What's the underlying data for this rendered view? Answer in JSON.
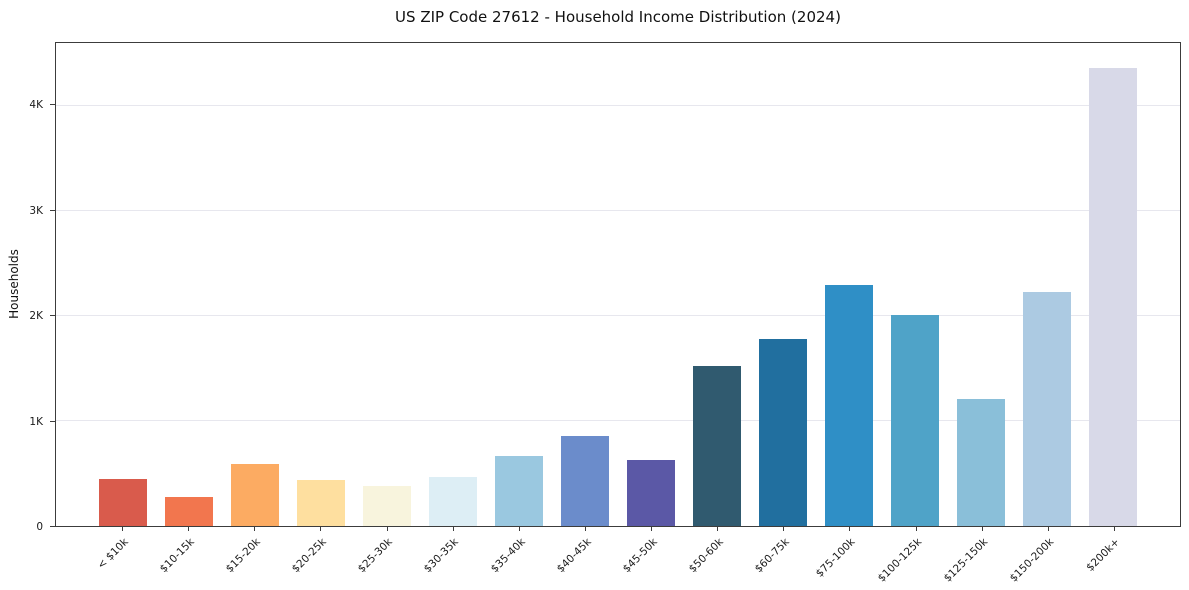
{
  "figure": {
    "title": "US ZIP Code 27612 - Household Income Distribution (2024)",
    "ylabel": "Households"
  },
  "chart_data": {
    "type": "bar",
    "title": "US ZIP Code 27612 - Household Income Distribution (2024)",
    "xlabel": "",
    "ylabel": "Households",
    "categories": [
      "< $10k",
      "$10-15k",
      "$15-20k",
      "$20-25k",
      "$25-30k",
      "$30-35k",
      "$35-40k",
      "$40-45k",
      "$45-50k",
      "$50-60k",
      "$60-75k",
      "$75-100k",
      "$100-125k",
      "$125-150k",
      "$150-200k",
      "$200k+"
    ],
    "values": [
      445,
      275,
      590,
      435,
      380,
      465,
      665,
      860,
      625,
      1520,
      1780,
      2300,
      2010,
      1210,
      2230,
      4360
    ],
    "colors": [
      "#d95b4c",
      "#f2764e",
      "#fcab62",
      "#fedf9f",
      "#f8f4dd",
      "#ddeef5",
      "#9ac8e0",
      "#6b8ccb",
      "#5b58a6",
      "#305a6f",
      "#216f9f",
      "#2f8fc6",
      "#4fa3c8",
      "#8abfd9",
      "#accae2",
      "#d8d9e8"
    ],
    "ylim": [
      0,
      4600
    ],
    "yticks": [
      {
        "value": 0,
        "label": "0"
      },
      {
        "value": 1000,
        "label": "1K"
      },
      {
        "value": 2000,
        "label": "2K"
      },
      {
        "value": 3000,
        "label": "3K"
      },
      {
        "value": 4000,
        "label": "4K"
      }
    ],
    "grid": "horizontal",
    "legend": "none"
  }
}
